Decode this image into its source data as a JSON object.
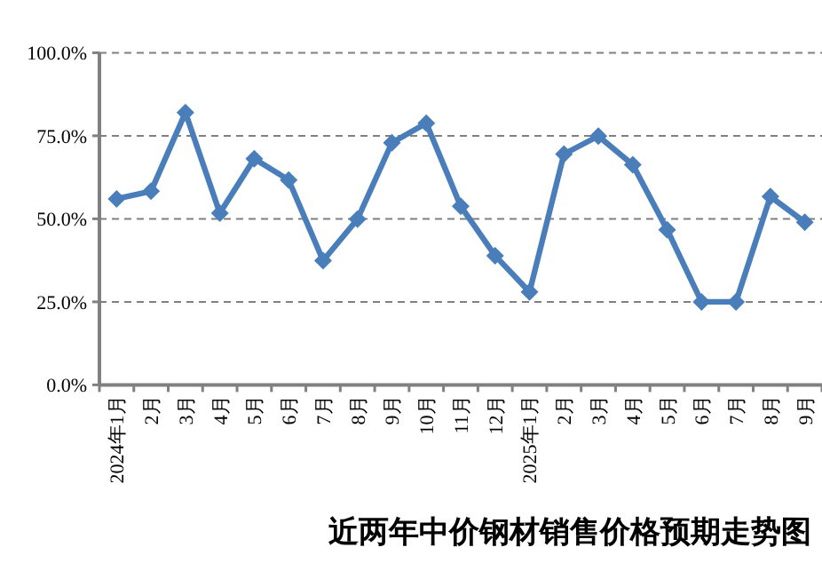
{
  "chart_data": {
    "type": "line",
    "title": "近两年中价钢材销售价格预期走势图",
    "categories": [
      "2024年1月",
      "2月",
      "3月",
      "4月",
      "5月",
      "6月",
      "7月",
      "8月",
      "9月",
      "10月",
      "11月",
      "12月",
      "2025年1月",
      "2月",
      "3月",
      "4月",
      "5月",
      "6月",
      "7月",
      "8月",
      "9月"
    ],
    "series": [
      {
        "color": "#4a7ebb",
        "values": [
          56.0,
          58.3,
          82.0,
          51.7,
          68.1,
          61.7,
          37.4,
          49.9,
          72.9,
          78.8,
          53.8,
          38.9,
          28.0,
          69.5,
          74.9,
          66.3,
          46.7,
          25.0,
          25.0,
          56.7,
          49.0
        ]
      }
    ],
    "ylim": [
      0,
      100
    ],
    "yticks": [
      {
        "value": 0,
        "label": "0.0%"
      },
      {
        "value": 25,
        "label": "25.0%"
      },
      {
        "value": 50,
        "label": "50.0%"
      },
      {
        "value": 75,
        "label": "75.0%"
      },
      {
        "value": 100,
        "label": "100.0%"
      }
    ],
    "grid": "y",
    "marker": "diamond",
    "line_style": "solid"
  }
}
